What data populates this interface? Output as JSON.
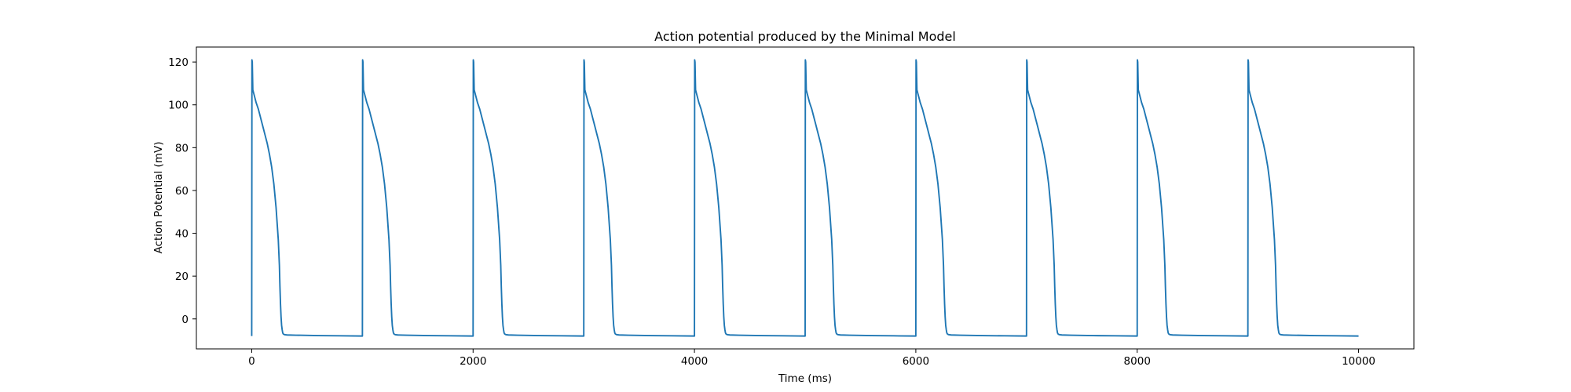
{
  "chart_data": {
    "type": "line",
    "title": "Action potential produced by the Minimal Model",
    "xlabel": "Time (ms)",
    "ylabel": "Action Potential (mV)",
    "xlim": [
      -500,
      10500
    ],
    "ylim": [
      -14,
      127
    ],
    "xticks": [
      0,
      2000,
      4000,
      6000,
      8000,
      10000
    ],
    "yticks": [
      0,
      20,
      40,
      60,
      80,
      100,
      120
    ],
    "grid": false,
    "series": [
      {
        "color": "#1f77b4",
        "beat_period": 1000,
        "beat_starts": [
          0,
          1000,
          2000,
          3000,
          4000,
          5000,
          6000,
          7000,
          8000,
          9000
        ],
        "end_time": 10000,
        "beat_waveform": {
          "t": [
            0,
            2,
            5,
            10,
            20,
            40,
            60,
            80,
            100,
            120,
            140,
            160,
            180,
            200,
            220,
            240,
            250,
            255,
            260,
            265,
            270,
            275,
            280,
            285,
            290,
            295,
            300,
            320,
            400,
            600,
            800,
            999
          ],
          "v": [
            -8,
            121,
            120,
            107,
            105,
            101,
            98,
            94,
            90,
            86,
            82,
            77,
            71,
            63,
            52,
            37,
            25,
            15,
            7,
            1,
            -3,
            -5,
            -6.5,
            -7,
            -7.2,
            -7.3,
            -7.4,
            -7.5,
            -7.6,
            -7.8,
            -7.9,
            -8
          ]
        }
      }
    ]
  }
}
